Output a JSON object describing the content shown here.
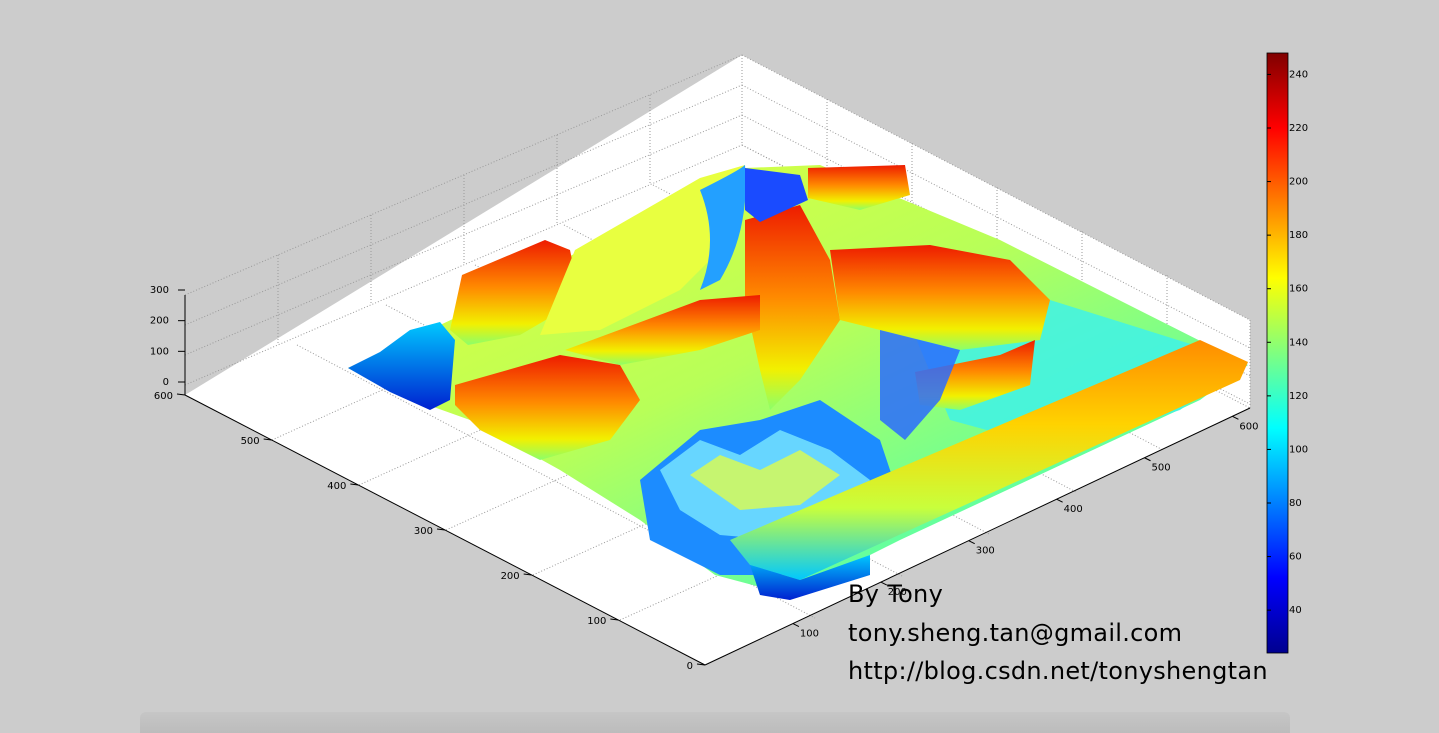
{
  "chart_data": {
    "type": "surface",
    "title": "",
    "xlabel": "",
    "ylabel": "",
    "zlabel": "",
    "x_ticks": [
      0,
      100,
      200,
      300,
      400,
      500,
      600
    ],
    "y_ticks": [
      100,
      200,
      300,
      400,
      500,
      600
    ],
    "z_ticks": [
      0,
      100,
      200,
      300
    ],
    "xlim": [
      0,
      600
    ],
    "ylim": [
      0,
      620
    ],
    "zlim": [
      0,
      300
    ],
    "grid": true,
    "colormap": "jet",
    "colorbar": {
      "ticks": [
        40,
        60,
        80,
        100,
        120,
        140,
        160,
        180,
        200,
        220,
        240
      ],
      "range": [
        24,
        248
      ]
    },
    "colors": {
      "background": "#cccccc",
      "axes_background": "#ffffff",
      "grid": "#9a9a9a"
    }
  },
  "annotations": {
    "author": "By Tony",
    "email": "tony.sheng.tan@gmail.com",
    "url": "http://blog.csdn.net/tonyshengtan"
  }
}
